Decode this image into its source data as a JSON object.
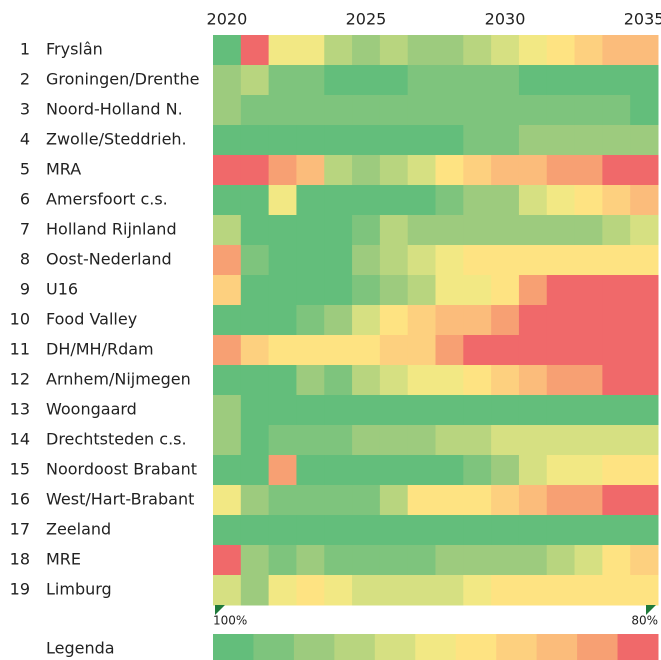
{
  "chart_data": {
    "type": "heatmap",
    "x": [
      2020,
      2021,
      2022,
      2023,
      2024,
      2025,
      2026,
      2027,
      2028,
      2029,
      2030,
      2031,
      2032,
      2033,
      2034,
      2035
    ],
    "xticks": [
      2020,
      2025,
      2030,
      2035
    ],
    "palette": [
      "#63be7b",
      "#7ec47d",
      "#9dcb7e",
      "#b8d57f",
      "#d6e082",
      "#f2e884",
      "#fee382",
      "#fdd07f",
      "#fbbc7b",
      "#f7a073",
      "#f0696a"
    ],
    "rows": [
      {
        "number": "1",
        "name": "Fryslân",
        "values": [
          0,
          10,
          5,
          5,
          3,
          2,
          3,
          2,
          2,
          3,
          4,
          5,
          6,
          7,
          8,
          8
        ]
      },
      {
        "number": "2",
        "name": "Groningen/Drenthe",
        "values": [
          2,
          3,
          1,
          1,
          0,
          0,
          0,
          1,
          1,
          1,
          1,
          0,
          0,
          0,
          0,
          0
        ]
      },
      {
        "number": "3",
        "name": "Noord-Holland N.",
        "values": [
          2,
          1,
          1,
          1,
          1,
          1,
          1,
          1,
          1,
          1,
          1,
          1,
          1,
          1,
          1,
          0
        ]
      },
      {
        "number": "4",
        "name": "Zwolle/Steddrieh.",
        "values": [
          0,
          0,
          0,
          0,
          0,
          0,
          0,
          0,
          0,
          1,
          1,
          2,
          2,
          2,
          2,
          2
        ]
      },
      {
        "number": "5",
        "name": "MRA",
        "values": [
          10,
          10,
          9,
          8,
          3,
          2,
          3,
          4,
          6,
          7,
          8,
          8,
          9,
          9,
          10,
          10
        ]
      },
      {
        "number": "6",
        "name": "Amersfoort c.s.",
        "values": [
          0,
          0,
          5,
          0,
          0,
          0,
          0,
          0,
          1,
          2,
          2,
          4,
          5,
          6,
          7,
          8
        ]
      },
      {
        "number": "7",
        "name": "Holland Rijnland",
        "values": [
          3,
          0,
          0,
          0,
          0,
          1,
          3,
          2,
          2,
          2,
          2,
          2,
          2,
          2,
          3,
          4
        ]
      },
      {
        "number": "8",
        "name": "Oost-Nederland",
        "values": [
          9,
          1,
          0,
          0,
          0,
          2,
          3,
          4,
          5,
          6,
          6,
          6,
          6,
          6,
          6,
          6
        ]
      },
      {
        "number": "9",
        "name": "U16",
        "values": [
          7,
          0,
          0,
          0,
          0,
          1,
          2,
          3,
          5,
          5,
          6,
          9,
          10,
          10,
          10,
          10
        ]
      },
      {
        "number": "10",
        "name": "Food Valley",
        "values": [
          0,
          0,
          0,
          1,
          2,
          4,
          6,
          7,
          8,
          8,
          9,
          10,
          10,
          10,
          10,
          10
        ]
      },
      {
        "number": "11",
        "name": "DH/MH/Rdam",
        "values": [
          9,
          7,
          6,
          6,
          6,
          6,
          7,
          7,
          9,
          10,
          10,
          10,
          10,
          10,
          10,
          10
        ]
      },
      {
        "number": "12",
        "name": "Arnhem/Nijmegen",
        "values": [
          0,
          0,
          0,
          2,
          1,
          3,
          4,
          5,
          5,
          6,
          7,
          8,
          9,
          9,
          10,
          10
        ]
      },
      {
        "number": "13",
        "name": "Woongaard",
        "values": [
          2,
          0,
          0,
          0,
          0,
          0,
          0,
          0,
          0,
          0,
          0,
          0,
          0,
          0,
          0,
          0
        ]
      },
      {
        "number": "14",
        "name": "Drechtsteden c.s.",
        "values": [
          2,
          0,
          1,
          1,
          1,
          2,
          2,
          2,
          3,
          3,
          4,
          4,
          4,
          4,
          4,
          4
        ]
      },
      {
        "number": "15",
        "name": "Noordoost Brabant",
        "values": [
          0,
          0,
          9,
          0,
          0,
          0,
          0,
          0,
          0,
          1,
          2,
          4,
          5,
          5,
          6,
          6
        ]
      },
      {
        "number": "16",
        "name": "West/Hart-Brabant",
        "values": [
          5,
          2,
          1,
          1,
          1,
          1,
          3,
          6,
          6,
          6,
          7,
          8,
          9,
          9,
          10,
          10
        ]
      },
      {
        "number": "17",
        "name": "Zeeland",
        "values": [
          0,
          0,
          0,
          0,
          0,
          0,
          0,
          0,
          0,
          0,
          0,
          0,
          0,
          0,
          0,
          0
        ]
      },
      {
        "number": "18",
        "name": "MRE",
        "values": [
          10,
          2,
          1,
          2,
          1,
          1,
          1,
          1,
          2,
          2,
          2,
          2,
          3,
          4,
          6,
          7
        ]
      },
      {
        "number": "19",
        "name": "Limburg",
        "values": [
          4,
          2,
          5,
          6,
          5,
          4,
          4,
          4,
          4,
          5,
          6,
          6,
          6,
          6,
          6,
          6
        ]
      }
    ],
    "markers": [
      {
        "x": 2020,
        "label": "100%"
      },
      {
        "x": 2035,
        "label": "80%"
      }
    ],
    "legend_title": "Legenda"
  }
}
